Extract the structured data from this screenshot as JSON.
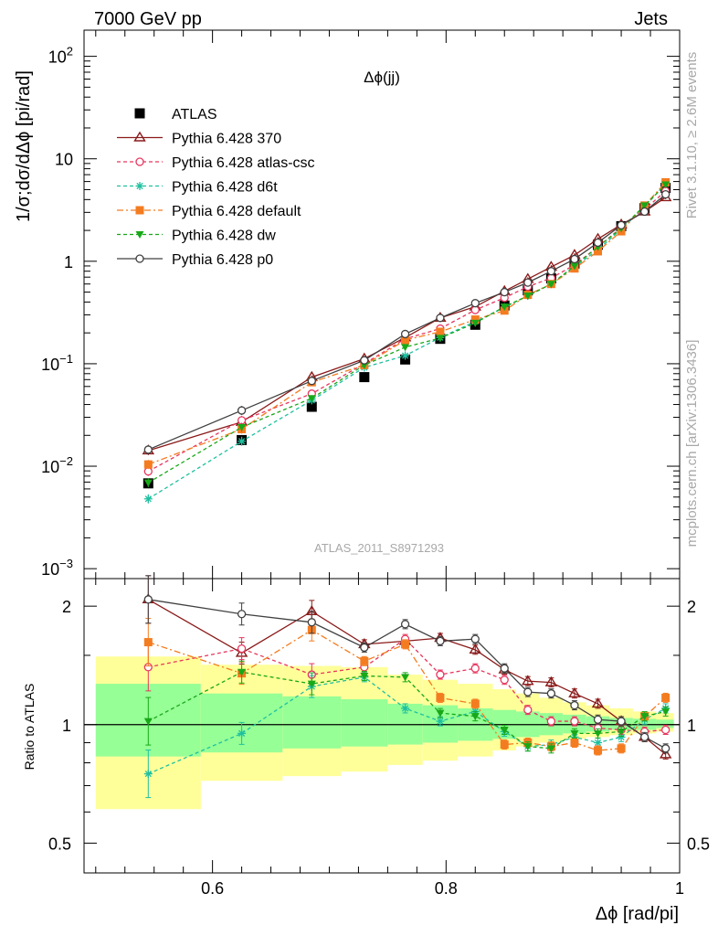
{
  "header": {
    "left": "7000 GeV pp",
    "right": "Jets"
  },
  "side_labels": {
    "rivet": "Rivet 3.1.10, ≥ 2.6M events",
    "mcplots": "mcplots.cern.ch [arXiv:1306.3436]"
  },
  "analysis_id": "ATLAS_2011_S8971293",
  "chart_data": [
    {
      "type": "scatter",
      "panel": "main",
      "title": "Δϕ(jj)",
      "ylabel": "1/σ;dσ/dΔϕ [pi/rad]",
      "xlabel": "",
      "yscale": "log",
      "xlim": [
        0.49,
        1.0
      ],
      "ylim": [
        0.0008,
        180
      ],
      "yticks": [
        {
          "v": 0.001,
          "b": "10",
          "e": "−3"
        },
        {
          "v": 0.01,
          "b": "10",
          "e": "−2"
        },
        {
          "v": 0.1,
          "b": "10",
          "e": "−1"
        },
        {
          "v": 1,
          "b": "1",
          "e": ""
        },
        {
          "v": 10,
          "b": "10",
          "e": ""
        },
        {
          "v": 100,
          "b": "10",
          "e": "2"
        }
      ],
      "legend_position": "top-left",
      "x": [
        0.545,
        0.625,
        0.685,
        0.73,
        0.765,
        0.795,
        0.825,
        0.85,
        0.87,
        0.89,
        0.91,
        0.93,
        0.95,
        0.97,
        0.988
      ],
      "series": [
        {
          "name": "ATLAS",
          "color": "#000000",
          "marker": "filled-square",
          "line": "none",
          "values": [
            0.0068,
            0.018,
            0.038,
            0.074,
            0.11,
            0.175,
            0.24,
            0.37,
            0.52,
            0.68,
            0.95,
            1.45,
            2.2,
            3.3,
            5.2
          ]
        },
        {
          "name": "Pythia 6.428 370",
          "color": "#8b1a1a",
          "marker": "open-triangle",
          "line": "solid",
          "values": [
            0.0142,
            0.027,
            0.074,
            0.112,
            0.18,
            0.28,
            0.36,
            0.51,
            0.67,
            0.88,
            1.15,
            1.65,
            2.28,
            3.05,
            4.2
          ]
        },
        {
          "name": "Pythia 6.428 atlas-csc",
          "color": "#e8365e",
          "marker": "open-circle",
          "line": "dashed",
          "values": [
            0.0089,
            0.028,
            0.051,
            0.1,
            0.175,
            0.22,
            0.335,
            0.44,
            0.565,
            0.685,
            0.92,
            1.38,
            2.13,
            3.2,
            4.85
          ]
        },
        {
          "name": "Pythia 6.428 d6t",
          "color": "#1fc0a0",
          "marker": "asterisk",
          "line": "dashed",
          "values": [
            0.0048,
            0.0175,
            0.044,
            0.092,
            0.12,
            0.18,
            0.258,
            0.355,
            0.46,
            0.6,
            0.88,
            1.3,
            2.05,
            3.4,
            5.7
          ]
        },
        {
          "name": "Pythia 6.428 default",
          "color": "#f47c20",
          "marker": "filled-square",
          "line": "dashdot",
          "values": [
            0.0104,
            0.023,
            0.066,
            0.097,
            0.17,
            0.205,
            0.27,
            0.33,
            0.47,
            0.6,
            0.85,
            1.25,
            1.96,
            3.5,
            5.9
          ]
        },
        {
          "name": "Pythia 6.428 dw",
          "color": "#18a818",
          "marker": "filled-triangle-down",
          "line": "dashed",
          "values": [
            0.0069,
            0.024,
            0.046,
            0.097,
            0.145,
            0.178,
            0.25,
            0.36,
            0.46,
            0.6,
            0.9,
            1.38,
            2.1,
            3.5,
            5.6
          ]
        },
        {
          "name": "Pythia 6.428 p0",
          "color": "#404040",
          "marker": "open-circle",
          "line": "solid",
          "values": [
            0.0145,
            0.035,
            0.068,
            0.108,
            0.195,
            0.28,
            0.39,
            0.5,
            0.62,
            0.8,
            1.05,
            1.52,
            2.25,
            3.05,
            4.5
          ]
        }
      ]
    },
    {
      "type": "scatter",
      "panel": "ratio",
      "ylabel": "Ratio to ATLAS",
      "xlabel": "Δϕ [rad/pi]",
      "yscale": "log",
      "xlim": [
        0.49,
        1.0
      ],
      "ylim": [
        0.42,
        2.35
      ],
      "xticks": [
        0.6,
        0.8,
        1
      ],
      "xtick_labels": [
        "0.6",
        "0.8",
        "1"
      ],
      "yticks": [
        0.5,
        1,
        2
      ],
      "ytick_labels": [
        "0.5",
        "1",
        "2"
      ],
      "bins": [
        [
          0.5,
          0.59
        ],
        [
          0.59,
          0.66
        ],
        [
          0.66,
          0.71
        ],
        [
          0.71,
          0.75
        ],
        [
          0.75,
          0.78
        ],
        [
          0.78,
          0.81
        ],
        [
          0.81,
          0.84
        ],
        [
          0.84,
          0.86
        ],
        [
          0.86,
          0.88
        ],
        [
          0.88,
          0.9
        ],
        [
          0.9,
          0.92
        ],
        [
          0.92,
          0.94
        ],
        [
          0.94,
          0.96
        ],
        [
          0.96,
          0.98
        ],
        [
          0.98,
          0.995
        ]
      ],
      "band_outer": [
        [
          0.61,
          1.49
        ],
        [
          0.72,
          1.42
        ],
        [
          0.74,
          1.41
        ],
        [
          0.76,
          1.4
        ],
        [
          0.79,
          1.34
        ],
        [
          0.81,
          1.3
        ],
        [
          0.83,
          1.27
        ],
        [
          0.86,
          1.23
        ],
        [
          0.88,
          1.2
        ],
        [
          0.9,
          1.17
        ],
        [
          0.92,
          1.14
        ],
        [
          0.93,
          1.12
        ],
        [
          0.94,
          1.1
        ],
        [
          0.95,
          1.08
        ],
        [
          0.96,
          1.07
        ]
      ],
      "band_inner": [
        [
          0.83,
          1.27
        ],
        [
          0.85,
          1.2
        ],
        [
          0.87,
          1.18
        ],
        [
          0.88,
          1.16
        ],
        [
          0.89,
          1.13
        ],
        [
          0.9,
          1.12
        ],
        [
          0.91,
          1.1
        ],
        [
          0.92,
          1.09
        ],
        [
          0.93,
          1.08
        ],
        [
          0.94,
          1.07
        ],
        [
          0.95,
          1.06
        ],
        [
          0.96,
          1.05
        ],
        [
          0.97,
          1.04
        ],
        [
          0.97,
          1.035
        ],
        [
          0.98,
          1.03
        ]
      ],
      "x": [
        0.545,
        0.625,
        0.685,
        0.73,
        0.765,
        0.795,
        0.825,
        0.85,
        0.87,
        0.89,
        0.91,
        0.93,
        0.95,
        0.97,
        0.988
      ],
      "series": [
        {
          "name": "Pythia 6.428 370",
          "values": [
            2.08,
            1.52,
            1.94,
            1.6,
            1.63,
            1.66,
            1.55,
            1.38,
            1.29,
            1.28,
            1.2,
            1.13,
            1.02,
            0.93,
            0.84
          ]
        },
        {
          "name": "Pythia 6.428 atlas-csc",
          "values": [
            1.4,
            1.56,
            1.34,
            1.4,
            1.65,
            1.34,
            1.39,
            1.3,
            1.09,
            1.02,
            1.02,
            0.98,
            0.97,
            0.96,
            0.97
          ]
        },
        {
          "name": "Pythia 6.428 d6t",
          "values": [
            0.75,
            0.95,
            1.25,
            1.32,
            1.1,
            1.02,
            1.08,
            0.96,
            0.88,
            0.89,
            0.93,
            0.9,
            0.93,
            1.03,
            1.1
          ]
        },
        {
          "name": "Pythia 6.428 default",
          "values": [
            1.62,
            1.35,
            1.74,
            1.45,
            1.6,
            1.17,
            1.13,
            0.89,
            0.9,
            0.88,
            0.9,
            0.86,
            0.87,
            1.05,
            1.17
          ]
        },
        {
          "name": "Pythia 6.428 dw",
          "values": [
            1.02,
            1.36,
            1.27,
            1.33,
            1.32,
            1.07,
            1.05,
            0.97,
            0.88,
            0.87,
            0.95,
            0.95,
            0.96,
            1.05,
            1.08
          ]
        },
        {
          "name": "Pythia 6.428 p0",
          "values": [
            2.08,
            1.91,
            1.82,
            1.57,
            1.8,
            1.63,
            1.65,
            1.39,
            1.21,
            1.2,
            1.12,
            1.03,
            1.02,
            0.93,
            0.87
          ]
        }
      ]
    }
  ]
}
